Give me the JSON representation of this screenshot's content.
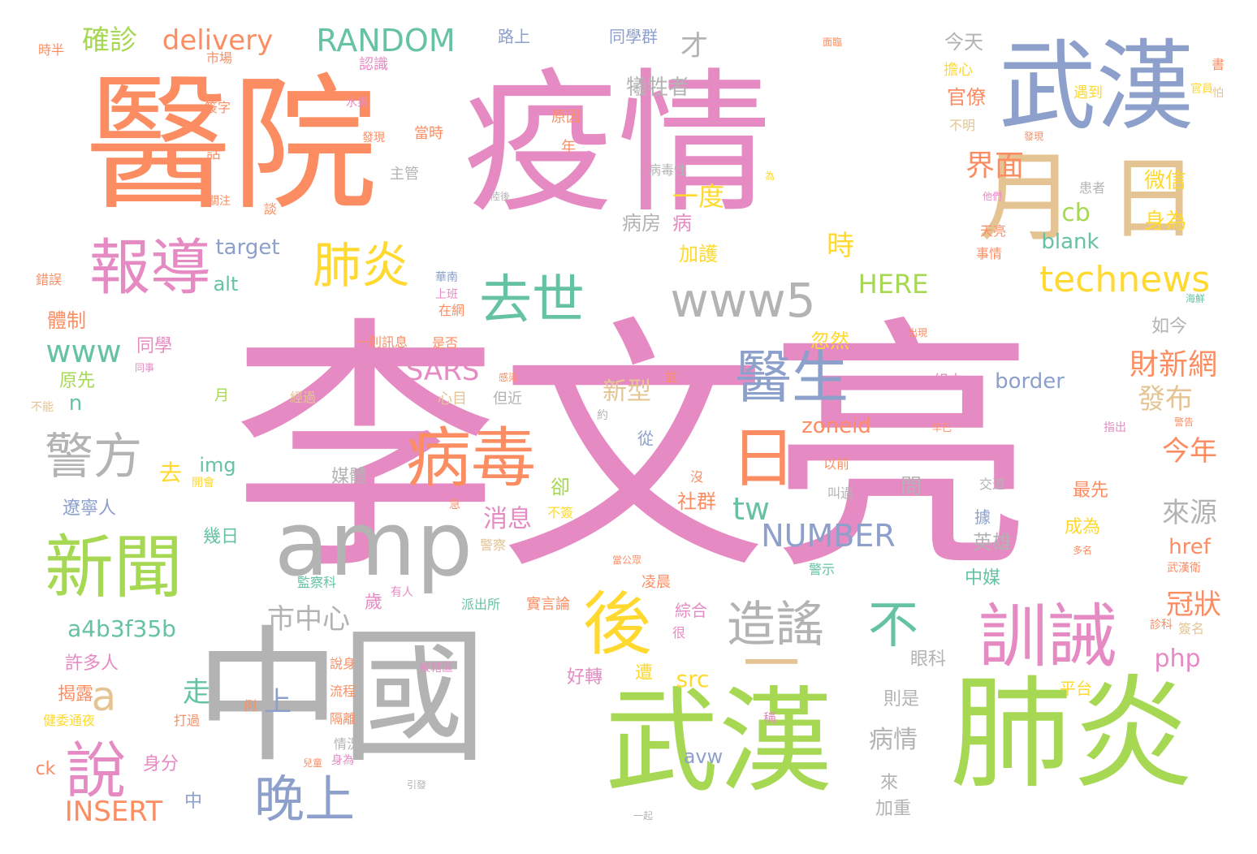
{
  "colors": {
    "pink": "#e68ac3",
    "orange": "#fc8d62",
    "green": "#a6d854",
    "gray": "#b3b3b3",
    "blue": "#8da0cb",
    "yellow": "#ffd92f",
    "tan": "#e5c494",
    "teal": "#66c2a5"
  },
  "words": [
    "李文亮",
    "疫情",
    "醫院",
    "中國",
    "武漢",
    "肺炎",
    "武漢",
    "月",
    "日",
    "amp",
    "報導",
    "新聞",
    "後",
    "訓誡",
    "病毒",
    "警方",
    "去世",
    "醫生",
    "造謠",
    "肺炎",
    "說",
    "日",
    "不",
    "晚上",
    "www5",
    "technews",
    "RANDOM",
    "delivery",
    "確診",
    "一",
    "a",
    "界面",
    "財新網",
    "今年",
    "來源",
    "發布",
    "冠狀",
    "HERE",
    "NUMBER",
    "SARS",
    "www",
    "INSERT",
    "a4b3f35b",
    "市中心",
    "一度",
    "時",
    "cb",
    "blank",
    "target",
    "alt",
    "tw",
    "php",
    "href",
    "src",
    "border",
    "zoneid",
    "img",
    "avw",
    "微信",
    "身為",
    "今天",
    "擔心",
    "官僚",
    "犧牲者",
    "遇到",
    "才",
    "路上",
    "同學群",
    "認識",
    "水果",
    "當時",
    "原因",
    "主管",
    "陸後",
    "病房",
    "病",
    "加護",
    "華南",
    "上班",
    "在網",
    "一則訊息",
    "是否",
    "同學",
    "體制",
    "錯誤",
    "原先",
    "月",
    "不能",
    "n",
    "心目",
    "但近",
    "新型",
    "忽然",
    "如今",
    "海鮮",
    "組中",
    "去",
    "開會",
    "遼寧人",
    "幾日",
    "許多人",
    "揭露",
    "健委通夜",
    "ck",
    "身分",
    "中",
    "媒體",
    "問",
    "消息",
    "卻",
    "社群",
    "最先",
    "成為",
    "英雄",
    "中媒",
    "警示",
    "武漢衛",
    "簽名",
    "診科",
    "平台",
    "眼科",
    "則是",
    "病情",
    "來",
    "加重",
    "好轉",
    "遭",
    "綜合",
    "很",
    "歲",
    "凌晨",
    "實言論",
    "派出所",
    "監察科",
    "有人",
    "被轄區",
    "說身",
    "流程",
    "隔離",
    "情況",
    "打過",
    "身為",
    "上",
    "走",
    "以前",
    "叫過",
    "交道",
    "據",
    "從",
    "沒",
    "並",
    "約",
    "經過",
    "例",
    "稱",
    "引發",
    "一起",
    "警察",
    "多名",
    "當公眾",
    "市場",
    "時半",
    "簽字",
    "話",
    "關注",
    "談",
    "發現",
    "官員",
    "年",
    "病毒性",
    "事情",
    "天亮",
    "患者",
    "書",
    "怕",
    "不明",
    "為",
    "他們",
    "感染",
    "警告",
    "指出",
    "早已",
    "要求",
    "出現",
    "面臨",
    "發現",
    "兒童",
    "同事",
    "急",
    "不簽"
  ]
}
